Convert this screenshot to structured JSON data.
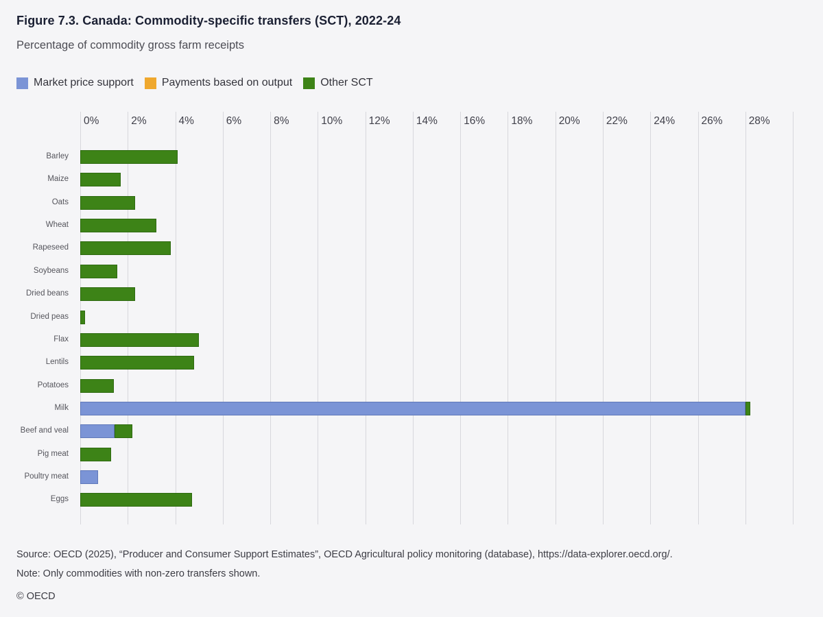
{
  "header": {
    "title": "Figure 7.3. Canada: Commodity-specific transfers (SCT), 2022-24",
    "subtitle": "Percentage of commodity gross farm receipts"
  },
  "legend": {
    "items": [
      {
        "label": "Market price support",
        "color": "#7b94d6"
      },
      {
        "label": "Payments based on output",
        "color": "#efa82e"
      },
      {
        "label": "Other SCT",
        "color": "#3d8317"
      }
    ]
  },
  "chart_data": {
    "type": "bar",
    "orientation": "horizontal",
    "title": "Figure 7.3. Canada: Commodity-specific transfers (SCT), 2022-24",
    "subtitle": "Percentage of commodity gross farm receipts",
    "xlabel": "Percentage of commodity gross farm receipts",
    "ylabel": "",
    "xlim": [
      0,
      30
    ],
    "tick_step": 2,
    "tick_labels": [
      "0%",
      "2%",
      "4%",
      "6%",
      "8%",
      "10%",
      "12%",
      "14%",
      "16%",
      "18%",
      "20%",
      "22%",
      "24%",
      "26%",
      "28%"
    ],
    "grid": true,
    "legend_position": "top",
    "categories": [
      "Barley",
      "Maize",
      "Oats",
      "Wheat",
      "Rapeseed",
      "Soybeans",
      "Dried beans",
      "Dried peas",
      "Flax",
      "Lentils",
      "Potatoes",
      "Milk",
      "Beef and veal",
      "Pig meat",
      "Poultry meat",
      "Eggs"
    ],
    "series": [
      {
        "name": "Market price support",
        "color": "#7b94d6",
        "border": "#5f78b9",
        "values": [
          0,
          0,
          0,
          0,
          0,
          0,
          0,
          0,
          0,
          0,
          0,
          28.0,
          1.45,
          0,
          0.75,
          0
        ]
      },
      {
        "name": "Payments based on output",
        "color": "#efa82e",
        "border": "#c8880d",
        "values": [
          0,
          0,
          0,
          0,
          0,
          0,
          0,
          0,
          0,
          0,
          0,
          0,
          0,
          0,
          0,
          0
        ]
      },
      {
        "name": "Other SCT",
        "color": "#3d8317",
        "border": "#2e6a10",
        "values": [
          4.1,
          1.7,
          2.3,
          3.2,
          3.8,
          1.55,
          2.3,
          0.2,
          5.0,
          4.8,
          1.4,
          0.2,
          0.75,
          1.3,
          0,
          4.7
        ]
      }
    ]
  },
  "footer": {
    "source": "Source: OECD (2025), “Producer and Consumer Support Estimates”, OECD Agricultural policy monitoring (database), https://data-explorer.oecd.org/.",
    "note": "Note: Only commodities with non-zero transfers shown.",
    "copyright": "© OECD"
  }
}
